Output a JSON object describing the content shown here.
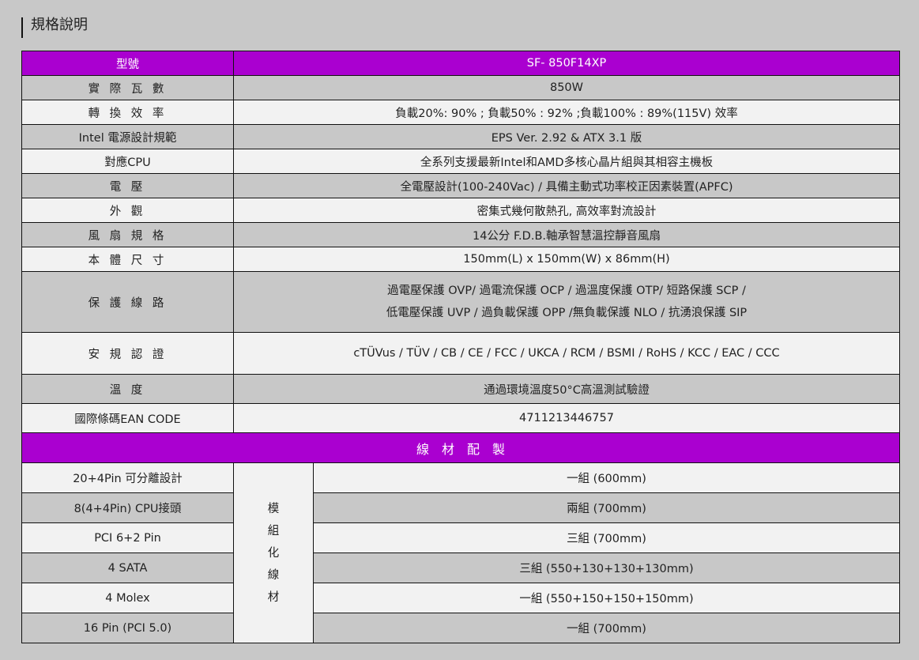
{
  "title": "規格說明",
  "colors": {
    "header": "#aa00d0",
    "row_dark": "#c8c8c8",
    "row_light": "#f2f2f2"
  },
  "spec_rows": [
    {
      "label": "型號",
      "value": "SF- 850F14XP"
    },
    {
      "label": "實 際 瓦 數",
      "value": "850W"
    },
    {
      "label": "轉 換 效 率",
      "value": "負載20%: 90% ; 負載50% : 92% ;負載100% : 89%(115V) 效率"
    },
    {
      "label": "Intel 電源設計規範",
      "value": "EPS Ver. 2.92 & ATX 3.1 版"
    },
    {
      "label": "對應CPU",
      "value": "全系列支援最新Intel和AMD多核心晶片組與其相容主機板"
    },
    {
      "label": "電 壓",
      "value": "全電壓設計(100-240Vac) / 具備主動式功率校正因素裝置(APFC)"
    },
    {
      "label": "外 觀",
      "value": "密集式幾何散熱孔, 高效率對流設計"
    },
    {
      "label": "風 扇 規 格",
      "value": "14公分 F.D.B.軸承智慧溫控靜音風扇"
    },
    {
      "label": "本 體 尺 寸",
      "value": "150mm(L) x 150mm(W) x 86mm(H)"
    },
    {
      "label": "保 護 線 路",
      "value_lines": [
        "過電壓保護 OVP/ 過電流保護 OCP / 過溫度保護 OTP/ 短路保護 SCP /",
        "低電壓保護 UVP / 過負載保護 OPP /無負載保護 NLO / 抗湧浪保護 SIP"
      ]
    },
    {
      "label": "安 規 認 證",
      "value": "cTÜVus / TÜV / CB / CE / FCC / UKCA / RCM / BSMI / RoHS / KCC / EAC / CCC"
    },
    {
      "label": "溫 度",
      "value": "通過環境溫度50°C高溫測試驗證"
    },
    {
      "label": "國際條碼EAN CODE",
      "value": "4711213446757"
    }
  ],
  "cable_header": "線　材　配　製",
  "cable_type": [
    "模",
    "組",
    "化",
    "線",
    "材"
  ],
  "cables": [
    {
      "label": "20+4Pin 可分離設計",
      "value": "一組 (600mm)"
    },
    {
      "label": "8(4+4Pin) CPU接頭",
      "value": "兩組 (700mm)"
    },
    {
      "label": "PCI 6+2 Pin",
      "value": "三組 (700mm)"
    },
    {
      "label": "4 SATA",
      "value": "三組 (550+130+130+130mm)"
    },
    {
      "label": "4 Molex",
      "value": "一組 (550+150+150+150mm)"
    },
    {
      "label": "16 Pin (PCI 5.0)",
      "value": "一組 (700mm)"
    }
  ]
}
